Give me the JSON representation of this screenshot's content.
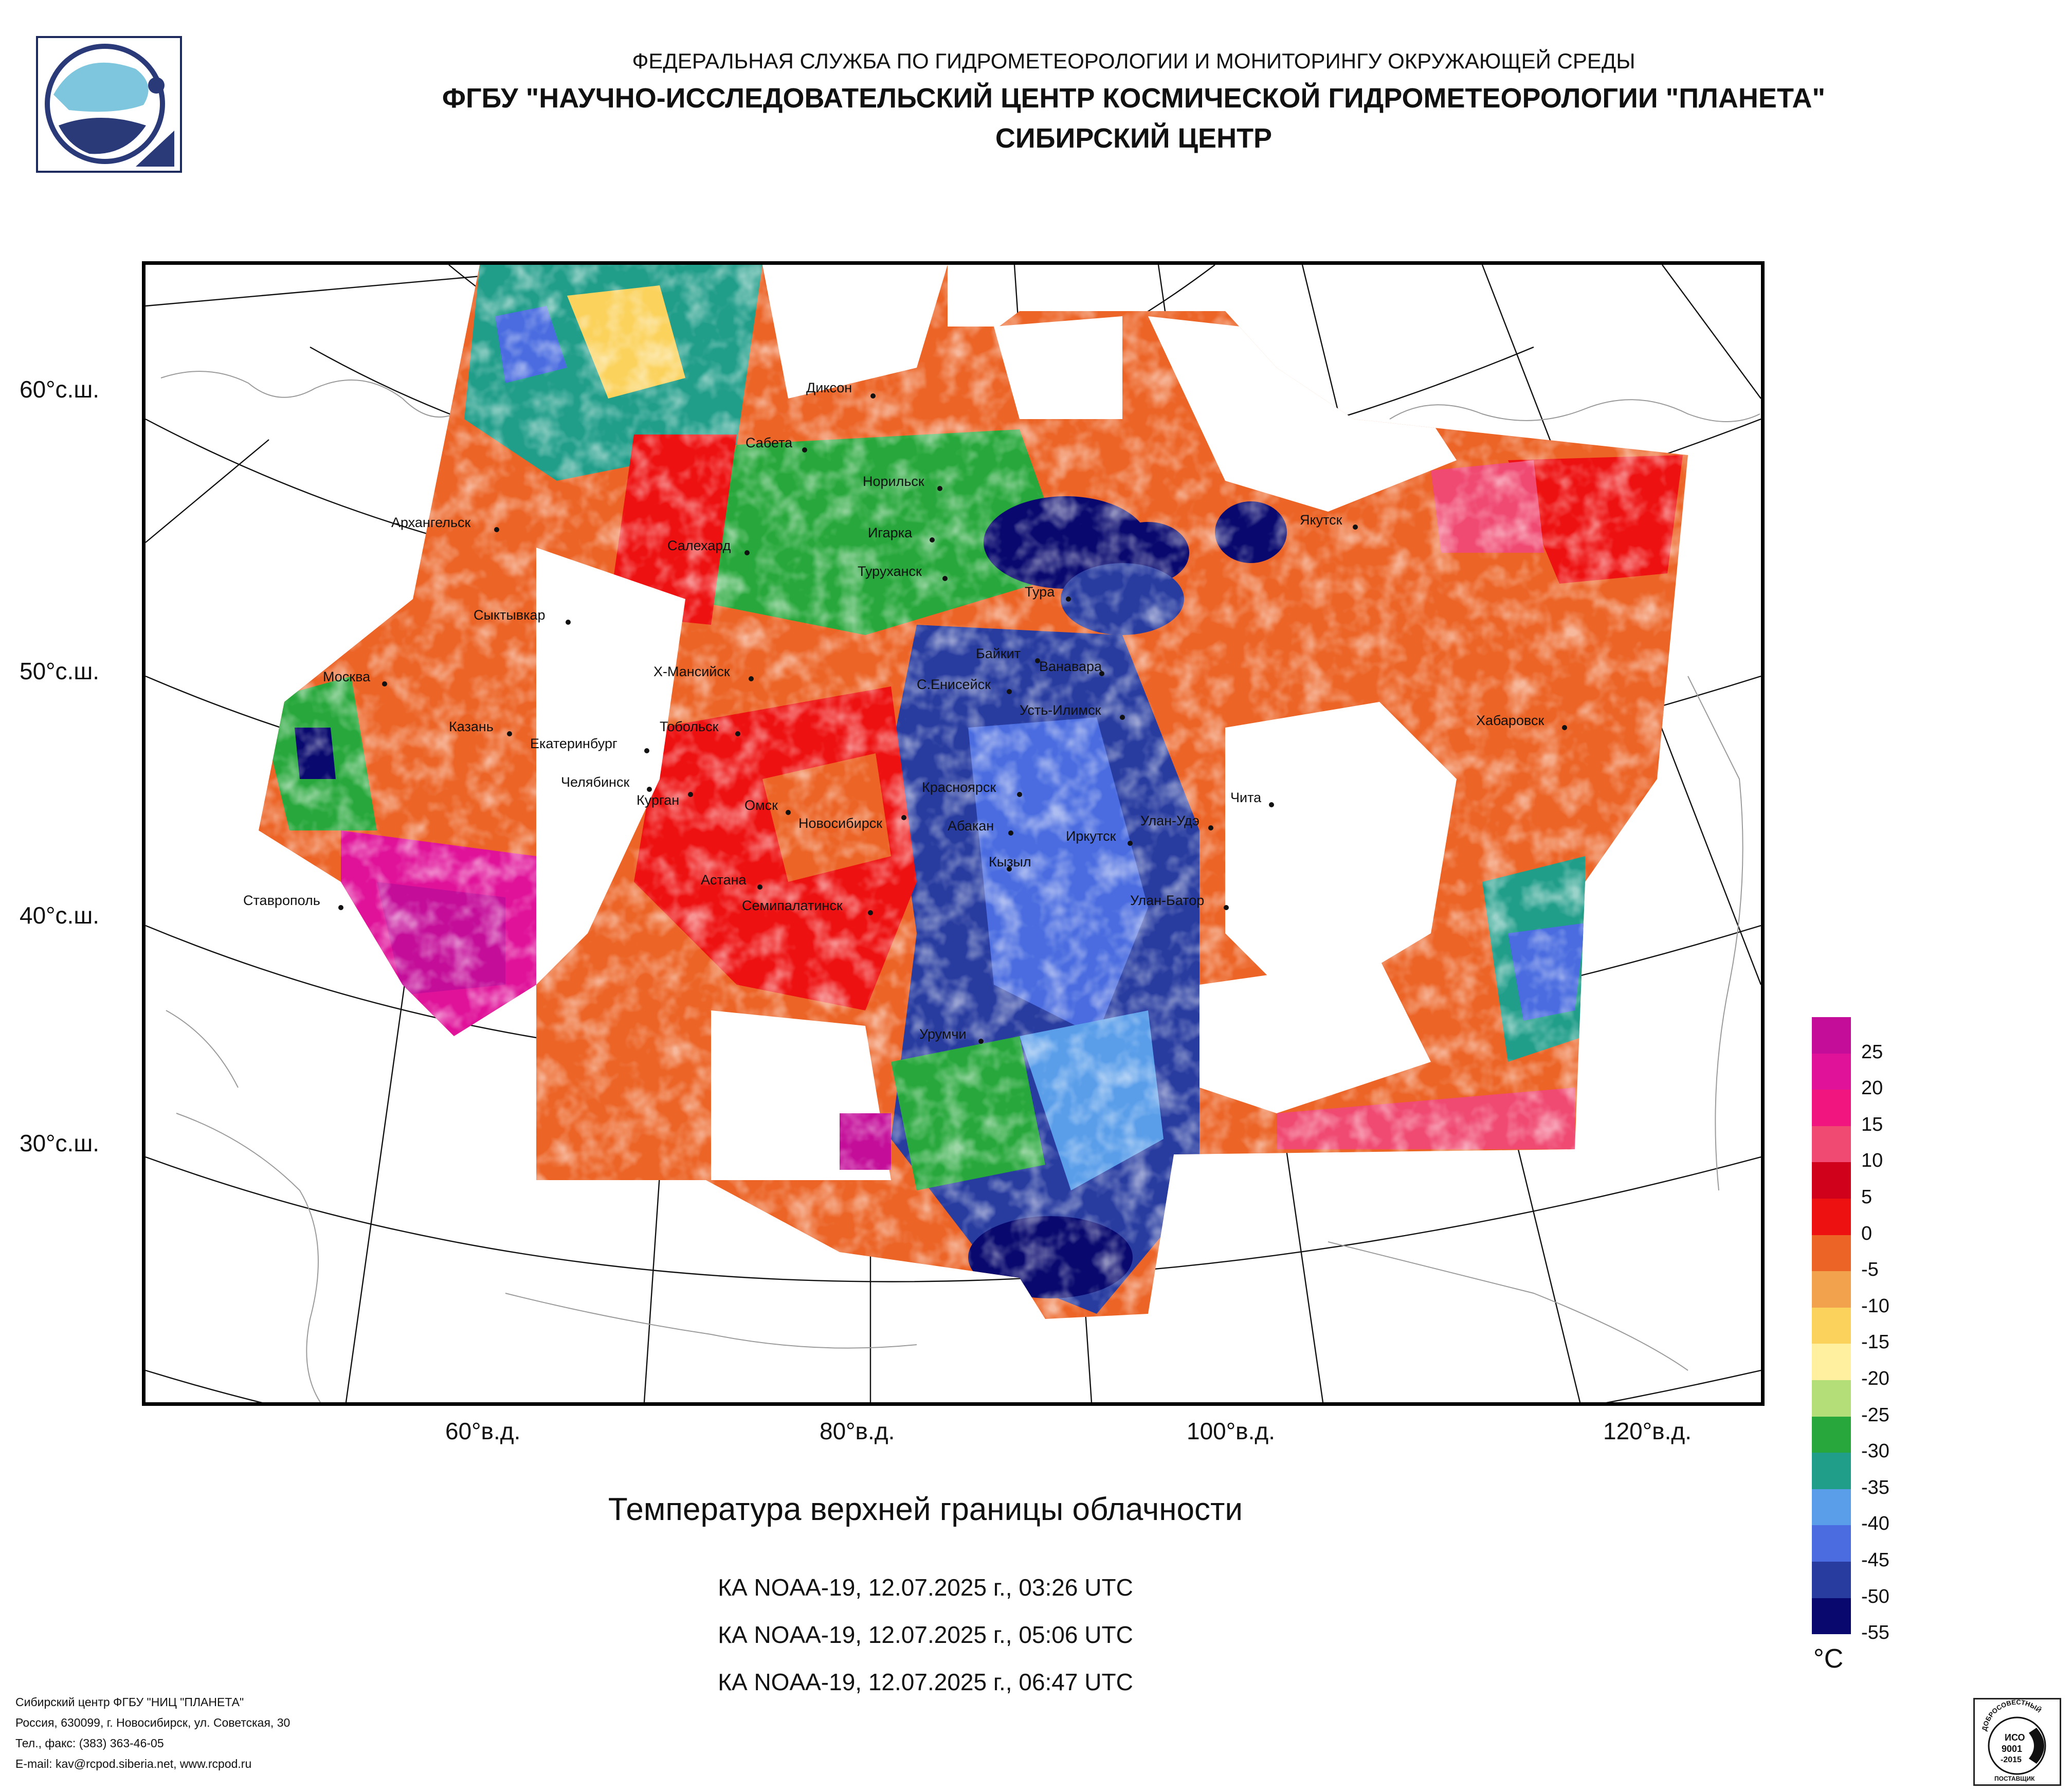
{
  "header": {
    "line1": "ФЕДЕРАЛЬНАЯ СЛУЖБА ПО ГИДРОМЕТЕОРОЛОГИИ И МОНИТОРИНГУ ОКРУЖАЮЩЕЙ СРЕДЫ",
    "line2": "ФГБУ \"НАУЧНО-ИССЛЕДОВАТЕЛЬСКИЙ ЦЕНТР КОСМИЧЕСКОЙ ГИДРОМЕТЕОРОЛОГИИ \"ПЛАНЕТА\"",
    "line3": "СИБИРСКИЙ ЦЕНТР"
  },
  "lat_labels": [
    "60°с.ш.",
    "50°с.ш.",
    "40°с.ш.",
    "30°с.ш."
  ],
  "lon_labels": [
    "60°в.д.",
    "80°в.д.",
    "100°в.д.",
    "120°в.д."
  ],
  "cities": [
    "Диксон",
    "Сабета",
    "Норильск",
    "Архангельск",
    "Игарка",
    "Салехард",
    "Туруханск",
    "Тура",
    "Якутск",
    "Сыктывкар",
    "Байкит",
    "Ванавара",
    "Х-Мансийск",
    "С.Енисейск",
    "Усть-Илимск",
    "Москва",
    "Казань",
    "Екатеринбург",
    "Тобольск",
    "Хабаровск",
    "Челябинск",
    "Курган",
    "Красноярск",
    "Омск",
    "Новосибирск",
    "Чита",
    "Абакан",
    "Улан-Удэ",
    "Иркутск",
    "Кызыл",
    "Астана",
    "Ставрополь",
    "Семипалатинск",
    "Улан-Батор",
    "Урумчи"
  ],
  "title": "Температура верхней границы облачности",
  "passes": [
    "КА NOAA-19, 12.07.2025 г., 03:26 UTC",
    "КА NOAA-19, 12.07.2025 г., 05:06 UTC",
    "КА NOAA-19, 12.07.2025 г., 06:47 UTC"
  ],
  "legend": {
    "unit": "°C",
    "ticks": [
      "25",
      "20",
      "15",
      "10",
      "5",
      "0",
      "-5",
      "-10",
      "-15",
      "-20",
      "-25",
      "-30",
      "-35",
      "-40",
      "-45",
      "-50",
      "-55"
    ],
    "colors": [
      "#c40e9a",
      "#e0129a",
      "#f0157f",
      "#f04a72",
      "#d0021b",
      "#ee1111",
      "#ec6426",
      "#f2a24c",
      "#fbd25c",
      "#fff0a0",
      "#b4de78",
      "#28a83c",
      "#219e8a",
      "#5a9eea",
      "#4a6ce0",
      "#283ca0",
      "#08086e"
    ]
  },
  "footer": [
    "Сибирский центр ФГБУ \"НИЦ \"ПЛАНЕТА\"",
    "Россия, 630099, г. Новосибирск, ул. Советская, 30",
    "Тел., факс: (383) 363-46-05",
    "E-mail: kav@rcpod.siberia.net, www.rcpod.ru"
  ],
  "certificate": {
    "arc_text": "ДОБРОСОВЕСТНЫЙ",
    "line1": "ИСО",
    "line2": "9001",
    "line3": "-2015",
    "bottom": "ПОСТАВЩИК"
  }
}
